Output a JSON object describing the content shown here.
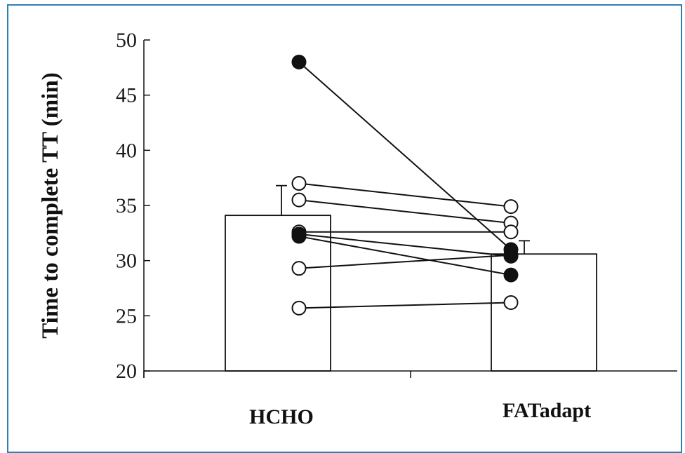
{
  "chart_data": {
    "type": "bar",
    "title": "",
    "xlabel": "",
    "ylabel": "Time to complete TT (min)",
    "ylim": [
      20,
      50
    ],
    "yticks": [
      20,
      25,
      30,
      35,
      40,
      45,
      50
    ],
    "categories": [
      "HCHO",
      "FATadapt"
    ],
    "bars": {
      "values": [
        34.1,
        30.6
      ],
      "error": [
        2.7,
        1.2
      ],
      "fill": "#ffffff",
      "stroke": "#111111"
    },
    "subjects": [
      {
        "marker": "filled",
        "values": [
          48.0,
          31.0
        ]
      },
      {
        "marker": "open",
        "values": [
          37.0,
          34.9
        ]
      },
      {
        "marker": "open",
        "values": [
          35.5,
          33.4
        ]
      },
      {
        "marker": "open",
        "values": [
          32.6,
          32.6
        ]
      },
      {
        "marker": "filled",
        "values": [
          32.2,
          28.7
        ]
      },
      {
        "marker": "open",
        "values": [
          29.3,
          30.5
        ]
      },
      {
        "marker": "open",
        "values": [
          25.7,
          26.2
        ]
      },
      {
        "marker": "filled",
        "values": [
          32.4,
          30.4
        ]
      }
    ],
    "colors": {
      "frame": "#2f7fb6",
      "ink": "#111111"
    }
  }
}
